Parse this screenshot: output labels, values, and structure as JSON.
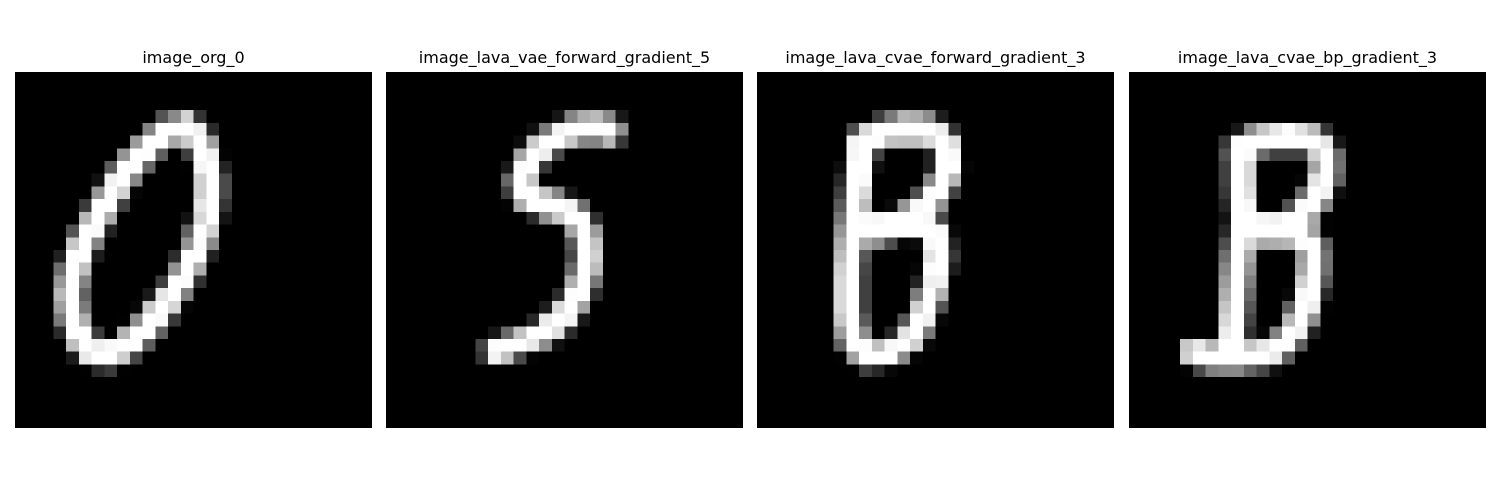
{
  "background_color": "#ffffff",
  "image_background": "#000000",
  "panels": [
    {
      "title": "image_org_0",
      "icon": "handwritten-digit-0",
      "strokes": [
        [
          [
            13.4,
            4.2
          ],
          [
            12.0,
            4.6
          ],
          [
            10.6,
            5.8
          ],
          [
            9.2,
            7.2
          ],
          [
            7.8,
            9.2
          ],
          [
            6.5,
            11.4
          ],
          [
            5.3,
            13.6
          ],
          [
            4.6,
            15.6
          ],
          [
            4.3,
            17.6
          ],
          [
            4.6,
            19.6
          ],
          [
            5.2,
            21.0
          ],
          [
            6.0,
            22.0
          ],
          [
            7.2,
            22.3
          ],
          [
            8.6,
            21.6
          ],
          [
            10.2,
            20.2
          ],
          [
            11.8,
            18.3
          ],
          [
            13.3,
            16.0
          ],
          [
            14.4,
            13.6
          ],
          [
            15.1,
            11.2
          ],
          [
            15.3,
            8.8
          ],
          [
            15.0,
            6.8
          ],
          [
            14.4,
            5.2
          ],
          [
            13.4,
            4.2
          ]
        ]
      ]
    },
    {
      "title": "image_lava_vae_forward_gradient_5",
      "icon": "handwritten-digit-5",
      "strokes": [
        [
          [
            17.6,
            4.6
          ],
          [
            16.2,
            4.3
          ],
          [
            14.4,
            4.6
          ],
          [
            12.6,
            5.6
          ],
          [
            11.2,
            7.0
          ],
          [
            10.6,
            8.6
          ],
          [
            11.0,
            9.8
          ],
          [
            12.2,
            10.4
          ],
          [
            13.6,
            10.6
          ],
          [
            15.0,
            11.4
          ],
          [
            15.7,
            13.0
          ],
          [
            15.8,
            15.0
          ],
          [
            15.2,
            17.2
          ],
          [
            14.0,
            19.2
          ],
          [
            12.2,
            20.6
          ],
          [
            10.2,
            21.4
          ],
          [
            8.6,
            22.0
          ]
        ]
      ]
    },
    {
      "title": "image_lava_cvae_forward_gradient_3",
      "icon": "handwritten-digit-8",
      "strokes": [
        [
          [
            8.2,
            5.6
          ],
          [
            9.8,
            4.8
          ],
          [
            11.8,
            4.4
          ],
          [
            13.8,
            4.6
          ],
          [
            14.9,
            5.8
          ],
          [
            15.0,
            7.6
          ],
          [
            14.2,
            9.4
          ],
          [
            12.8,
            11.0
          ],
          [
            11.2,
            12.0
          ],
          [
            9.6,
            12.4
          ],
          [
            8.4,
            12.2
          ]
        ],
        [
          [
            8.4,
            12.2
          ],
          [
            10.6,
            12.0
          ],
          [
            12.8,
            11.8
          ],
          [
            14.0,
            12.6
          ],
          [
            14.2,
            14.6
          ],
          [
            13.8,
            17.0
          ],
          [
            13.0,
            19.2
          ],
          [
            12.0,
            21.0
          ],
          [
            10.6,
            22.0
          ],
          [
            8.6,
            22.2
          ],
          [
            7.6,
            21.2
          ],
          [
            7.2,
            19.0
          ],
          [
            7.2,
            16.0
          ],
          [
            7.4,
            13.0
          ],
          [
            7.8,
            9.6
          ],
          [
            8.2,
            5.6
          ]
        ]
      ]
    },
    {
      "title": "image_lava_cvae_bp_gradient_3",
      "icon": "handwritten-digit-8",
      "strokes": [
        [
          [
            8.8,
            6.0
          ],
          [
            10.4,
            5.2
          ],
          [
            12.4,
            5.0
          ],
          [
            14.4,
            5.2
          ],
          [
            15.4,
            6.4
          ],
          [
            15.4,
            8.2
          ],
          [
            14.6,
            10.0
          ],
          [
            13.4,
            11.4
          ],
          [
            11.8,
            12.2
          ],
          [
            10.2,
            12.4
          ],
          [
            9.0,
            11.8
          ]
        ],
        [
          [
            9.0,
            11.8
          ],
          [
            11.2,
            12.4
          ],
          [
            13.4,
            12.8
          ],
          [
            14.4,
            13.8
          ],
          [
            14.4,
            15.8
          ],
          [
            14.0,
            18.0
          ],
          [
            13.2,
            20.0
          ],
          [
            12.2,
            21.4
          ],
          [
            10.6,
            22.2
          ],
          [
            8.4,
            22.4
          ],
          [
            6.4,
            22.4
          ],
          [
            5.0,
            22.0
          ]
        ],
        [
          [
            9.0,
            11.8
          ],
          [
            8.6,
            14.6
          ],
          [
            8.4,
            17.2
          ],
          [
            8.2,
            19.6
          ],
          [
            8.0,
            22.2
          ]
        ],
        [
          [
            8.8,
            6.0
          ],
          [
            8.8,
            9.0
          ],
          [
            9.0,
            11.8
          ]
        ]
      ]
    }
  ]
}
